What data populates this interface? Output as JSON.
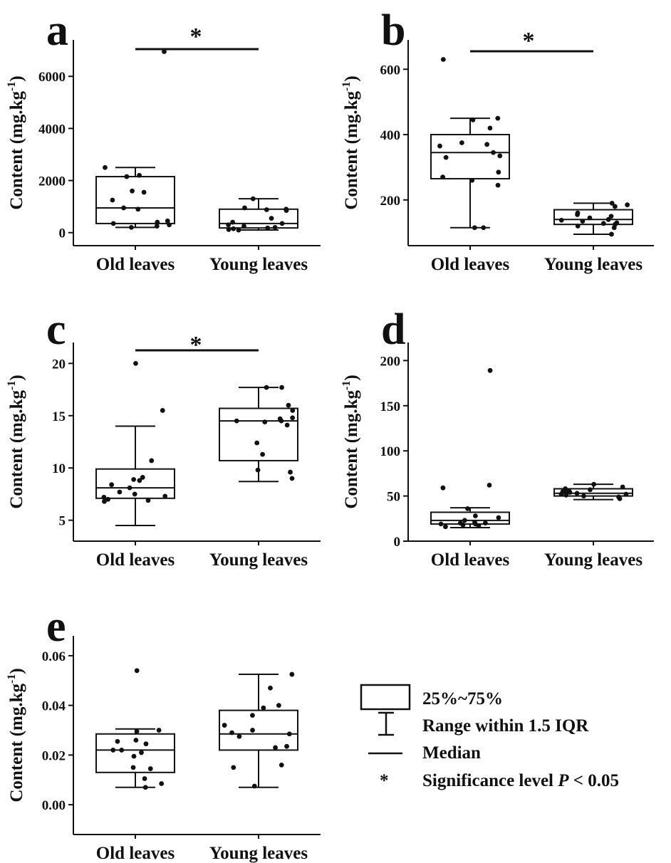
{
  "chart_data": [
    {
      "type": "box",
      "panel": "a",
      "ylabel": "Content (mg.kg",
      "ylabel_sup": "-1",
      "ylabel_close": ")",
      "categories": [
        "Old leaves",
        "Young leaves"
      ],
      "yticks": [
        0,
        2000,
        4000,
        6000
      ],
      "ylim": [
        -500,
        7400
      ],
      "significance": "*",
      "boxes": [
        {
          "category": "Old leaves",
          "q1": 350,
          "median": 950,
          "q3": 2150,
          "whisker_low": 200,
          "whisker_high": 2500,
          "points": [
            6950,
            2500,
            2200,
            2150,
            1600,
            1550,
            1250,
            950,
            900,
            450,
            400,
            350,
            300,
            250,
            200
          ]
        },
        {
          "category": "Young leaves",
          "q1": 180,
          "median": 350,
          "q3": 900,
          "whisker_low": 100,
          "whisker_high": 1300,
          "points": [
            1300,
            950,
            900,
            880,
            850,
            550,
            400,
            350,
            300,
            250,
            200,
            180,
            150,
            120,
            100
          ]
        }
      ]
    },
    {
      "type": "box",
      "panel": "b",
      "ylabel": "Content (mg.kg",
      "ylabel_sup": "-1",
      "ylabel_close": ")",
      "categories": [
        "Old leaves",
        "Young leaves"
      ],
      "yticks": [
        200,
        400,
        600
      ],
      "ylim": [
        60,
        690
      ],
      "significance": "*",
      "boxes": [
        {
          "category": "Old leaves",
          "q1": 265,
          "median": 345,
          "q3": 400,
          "whisker_low": 115,
          "whisker_high": 450,
          "points": [
            630,
            450,
            445,
            420,
            375,
            370,
            365,
            345,
            335,
            330,
            285,
            270,
            260,
            245,
            115,
            115
          ]
        },
        {
          "category": "Young leaves",
          "q1": 125,
          "median": 140,
          "q3": 170,
          "whisker_low": 95,
          "whisker_high": 190,
          "points": [
            190,
            185,
            180,
            160,
            155,
            150,
            145,
            140,
            138,
            135,
            130,
            128,
            125,
            120,
            115,
            95
          ]
        }
      ]
    },
    {
      "type": "box",
      "panel": "c",
      "ylabel": "Content (mg.kg",
      "ylabel_sup": "-1",
      "ylabel_close": ")",
      "categories": [
        "Old leaves",
        "Young leaves"
      ],
      "yticks": [
        5,
        10,
        15,
        20
      ],
      "ylim": [
        3,
        22
      ],
      "significance": "*",
      "boxes": [
        {
          "category": "Old leaves",
          "q1": 7.1,
          "median": 8.1,
          "q3": 9.9,
          "whisker_low": 4.5,
          "whisker_high": 14.0,
          "points": [
            20.0,
            15.5,
            10.7,
            9.1,
            8.9,
            8.8,
            8.4,
            8.1,
            7.7,
            7.5,
            7.3,
            7.2,
            7.0,
            6.8,
            6.9
          ]
        },
        {
          "category": "Young leaves",
          "q1": 10.7,
          "median": 14.5,
          "q3": 15.7,
          "whisker_low": 8.7,
          "whisker_high": 17.7,
          "points": [
            17.7,
            17.7,
            16.0,
            15.5,
            14.8,
            14.7,
            14.5,
            14.5,
            14.4,
            14.1,
            12.4,
            11.3,
            9.8,
            9.6,
            9.0
          ]
        }
      ]
    },
    {
      "type": "box",
      "panel": "d",
      "ylabel": "Content (mg.kg",
      "ylabel_sup": "-1",
      "ylabel_close": ")",
      "categories": [
        "Old leaves",
        "Young leaves"
      ],
      "yticks": [
        0,
        50,
        100,
        150,
        200
      ],
      "ylim": [
        0,
        220
      ],
      "significance": "",
      "boxes": [
        {
          "category": "Old leaves",
          "q1": 19,
          "median": 23,
          "q3": 32,
          "whisker_low": 15,
          "whisker_high": 37,
          "points": [
            189,
            62,
            59,
            36,
            28,
            26,
            23,
            21,
            20,
            20,
            19,
            19,
            18,
            17,
            16
          ]
        },
        {
          "category": "Young leaves",
          "q1": 50,
          "median": 53,
          "q3": 58,
          "whisker_low": 46,
          "whisker_high": 63,
          "points": [
            63,
            60,
            58,
            57,
            56,
            55,
            54,
            53,
            53,
            52,
            52,
            51,
            50,
            49,
            47
          ]
        }
      ]
    },
    {
      "type": "box",
      "panel": "e",
      "ylabel": "Content (mg.kg",
      "ylabel_sup": "-1",
      "ylabel_close": ")",
      "categories": [
        "Old leaves",
        "Young leaves"
      ],
      "yticks": [
        0.0,
        0.02,
        0.04,
        0.06
      ],
      "ytick_labels": [
        "0.00",
        "0.02",
        "0.04",
        "0.06"
      ],
      "ylim": [
        -0.012,
        0.068
      ],
      "significance": "",
      "boxes": [
        {
          "category": "Old leaves",
          "q1": 0.013,
          "median": 0.022,
          "q3": 0.0285,
          "whisker_low": 0.007,
          "whisker_high": 0.0305,
          "points": [
            0.054,
            0.03,
            0.0295,
            0.026,
            0.0255,
            0.0245,
            0.022,
            0.022,
            0.021,
            0.0195,
            0.015,
            0.0145,
            0.0105,
            0.0085,
            0.007
          ]
        },
        {
          "category": "Young leaves",
          "q1": 0.022,
          "median": 0.0285,
          "q3": 0.038,
          "whisker_low": 0.007,
          "whisker_high": 0.0525,
          "points": [
            0.0525,
            0.047,
            0.04,
            0.039,
            0.036,
            0.032,
            0.03,
            0.029,
            0.0285,
            0.0275,
            0.0235,
            0.023,
            0.016,
            0.015,
            0.0075
          ]
        }
      ]
    }
  ],
  "legend": {
    "box_label": "25%~75%",
    "whisker_label": "Range within 1.5 IQR",
    "median_label": "Median",
    "sig_symbol": "*",
    "sig_label_prefix": "Significance level ",
    "sig_label_italic": "P",
    "sig_label_suffix": " < 0.05"
  }
}
